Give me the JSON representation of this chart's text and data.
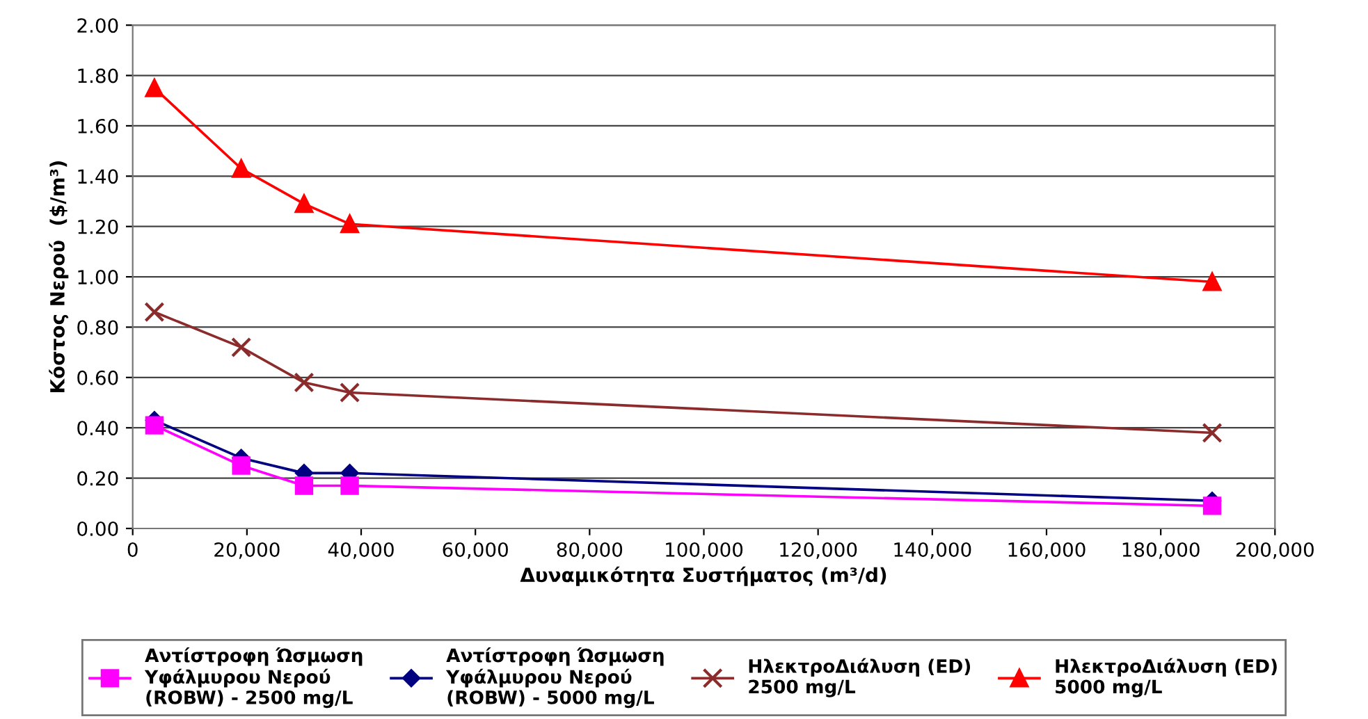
{
  "chart_data": {
    "type": "line",
    "xlabel": "Δυναμικότητα Συστήματος (m³/d)",
    "ylabel": "Κόστος Νερού  ($/m³)",
    "x": [
      3800,
      19000,
      30000,
      38000,
      189000
    ],
    "series": [
      {
        "name": "Αντίστροφη Ώσμωση\nΥφάλμυρου Νερού\n(ROBW) - 2500 mg/L",
        "color": "#ff00ff",
        "marker": "square",
        "values": [
          0.41,
          0.25,
          0.17,
          0.17,
          0.09
        ]
      },
      {
        "name": "Αντίστροφη Ώσμωση\nΥφάλμυρου Νερού\n(ROBW) - 5000 mg/L",
        "color": "#000080",
        "marker": "diamond",
        "values": [
          0.43,
          0.28,
          0.22,
          0.22,
          0.11
        ]
      },
      {
        "name": "ΗλεκτροΔιάλυση (ED)\n2500 mg/L",
        "color": "#8b2b2b",
        "marker": "cross",
        "values": [
          0.86,
          0.72,
          0.58,
          0.54,
          0.38
        ]
      },
      {
        "name": "ΗλεκτροΔιάλυση (ED)\n5000 mg/L",
        "color": "#ff0000",
        "marker": "triangle",
        "values": [
          1.75,
          1.43,
          1.29,
          1.21,
          0.98
        ]
      }
    ],
    "xlim": [
      0,
      200000
    ],
    "xticks": [
      {
        "value": 0,
        "label": "0"
      },
      {
        "value": 20000,
        "label": "20,000"
      },
      {
        "value": 40000,
        "label": "40,000"
      },
      {
        "value": 60000,
        "label": "60,000"
      },
      {
        "value": 80000,
        "label": "80,000"
      },
      {
        "value": 100000,
        "label": "100,000"
      },
      {
        "value": 120000,
        "label": "120,000"
      },
      {
        "value": 140000,
        "label": "140,000"
      },
      {
        "value": 160000,
        "label": "160,000"
      },
      {
        "value": 180000,
        "label": "180,000"
      },
      {
        "value": 200000,
        "label": "200,000"
      }
    ],
    "ylim": [
      0,
      2
    ],
    "yticks": [
      {
        "value": 0,
        "label": "0.00"
      },
      {
        "value": 0.2,
        "label": "0.20"
      },
      {
        "value": 0.4,
        "label": "0.40"
      },
      {
        "value": 0.6,
        "label": "0.60"
      },
      {
        "value": 0.8,
        "label": "0.80"
      },
      {
        "value": 1.0,
        "label": "1.00"
      },
      {
        "value": 1.2,
        "label": "1.20"
      },
      {
        "value": 1.4,
        "label": "1.40"
      },
      {
        "value": 1.6,
        "label": "1.60"
      },
      {
        "value": 1.8,
        "label": "1.80"
      },
      {
        "value": 2.0,
        "label": "2.00"
      }
    ],
    "grid": "y",
    "legend": "bottom",
    "line_style": "solid"
  }
}
